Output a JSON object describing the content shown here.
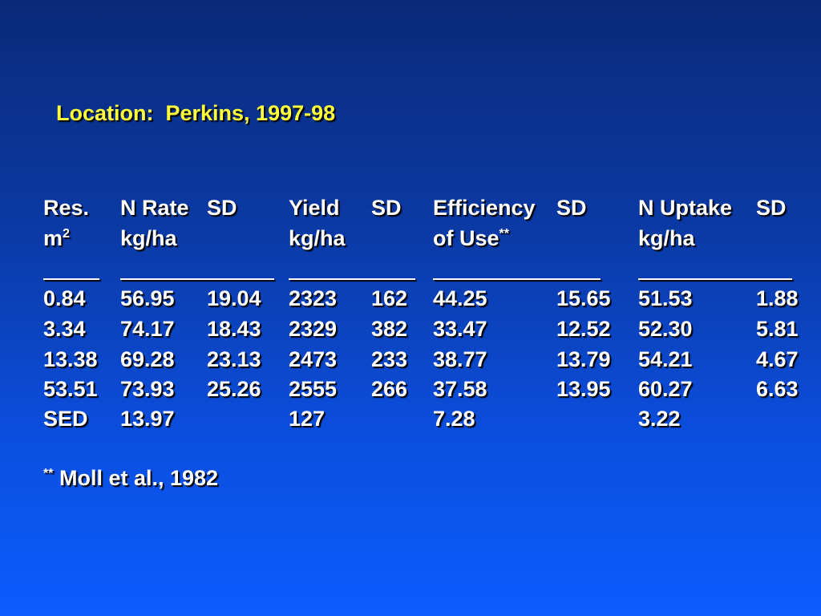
{
  "title": "Location:  Perkins, 1997-98",
  "headers": {
    "res_1": "Res.",
    "res_2": "m",
    "res_2_sup": "2",
    "nrate_1": "N Rate",
    "nrate_2": "kg/ha",
    "sd1": "SD",
    "yield_1": "Yield",
    "yield_2": "kg/ha",
    "sd2": "SD",
    "eff_1": "Efficiency",
    "eff_2": "of Use",
    "eff_2_sup": "**",
    "sd3": "SD",
    "nup_1": "N Uptake",
    "nup_2": "kg/ha",
    "sd4": "SD"
  },
  "rows": [
    {
      "res": "0.84",
      "nrate": "56.95",
      "sd1": "19.04",
      "yield": "2323",
      "sd2": "162",
      "eff": "44.25",
      "sd3": "15.65",
      "nup": "51.53",
      "sd4": "1.88"
    },
    {
      "res": "3.34",
      "nrate": "74.17",
      "sd1": "18.43",
      "yield": "2329",
      "sd2": "382",
      "eff": "33.47",
      "sd3": "12.52",
      "nup": "52.30",
      "sd4": "5.81"
    },
    {
      "res": "13.38",
      "nrate": "69.28",
      "sd1": "23.13",
      "yield": "2473",
      "sd2": "233",
      "eff": "38.77",
      "sd3": "13.79",
      "nup": "54.21",
      "sd4": "4.67"
    },
    {
      "res": "53.51",
      "nrate": "73.93",
      "sd1": "25.26",
      "yield": "2555",
      "sd2": "266",
      "eff": "37.58",
      "sd3": "13.95",
      "nup": "60.27",
      "sd4": "6.63"
    },
    {
      "res": "SED",
      "nrate": "13.97",
      "sd1": "",
      "yield": "127",
      "sd2": "",
      "eff": "7.28",
      "sd3": "",
      "nup": "3.22",
      "sd4": ""
    }
  ],
  "footnote": {
    "marker": "**",
    "text": " Moll et al., 1982"
  },
  "colors": {
    "title": "#ffff3b",
    "text": "#ffffff",
    "background_top": "#0a2a78",
    "background_bottom": "#0d5cff"
  }
}
